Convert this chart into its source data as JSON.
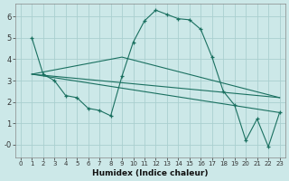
{
  "xlabel": "Humidex (Indice chaleur)",
  "background_color": "#cce8e8",
  "grid_color": "#aacfcf",
  "line_color": "#1a7060",
  "xlim": [
    -0.5,
    23.5
  ],
  "ylim": [
    -0.6,
    6.6
  ],
  "yticks": [
    0,
    1,
    2,
    3,
    4,
    5,
    6
  ],
  "ytick_labels": [
    "-0",
    "1",
    "2",
    "3",
    "4",
    "5",
    "6"
  ],
  "xticks": [
    0,
    1,
    2,
    3,
    4,
    5,
    6,
    7,
    8,
    9,
    10,
    11,
    12,
    13,
    14,
    15,
    16,
    17,
    18,
    19,
    20,
    21,
    22,
    23
  ],
  "main_x": [
    1,
    2,
    3,
    4,
    5,
    6,
    7,
    8,
    9,
    10,
    11,
    12,
    13,
    14,
    15,
    16,
    17,
    18,
    19,
    20,
    21,
    22,
    23
  ],
  "main_y": [
    5.0,
    3.3,
    3.0,
    2.3,
    2.2,
    1.7,
    1.6,
    1.35,
    3.2,
    4.8,
    5.8,
    6.3,
    6.1,
    5.9,
    5.85,
    5.4,
    4.1,
    2.5,
    1.85,
    0.2,
    1.2,
    -0.1,
    1.5
  ],
  "line2_x": [
    1,
    23
  ],
  "line2_y": [
    3.3,
    2.2
  ],
  "line3_x": [
    1,
    9,
    23
  ],
  "line3_y": [
    3.3,
    4.1,
    2.2
  ],
  "line4_x": [
    1,
    23
  ],
  "line4_y": [
    3.3,
    1.5
  ]
}
